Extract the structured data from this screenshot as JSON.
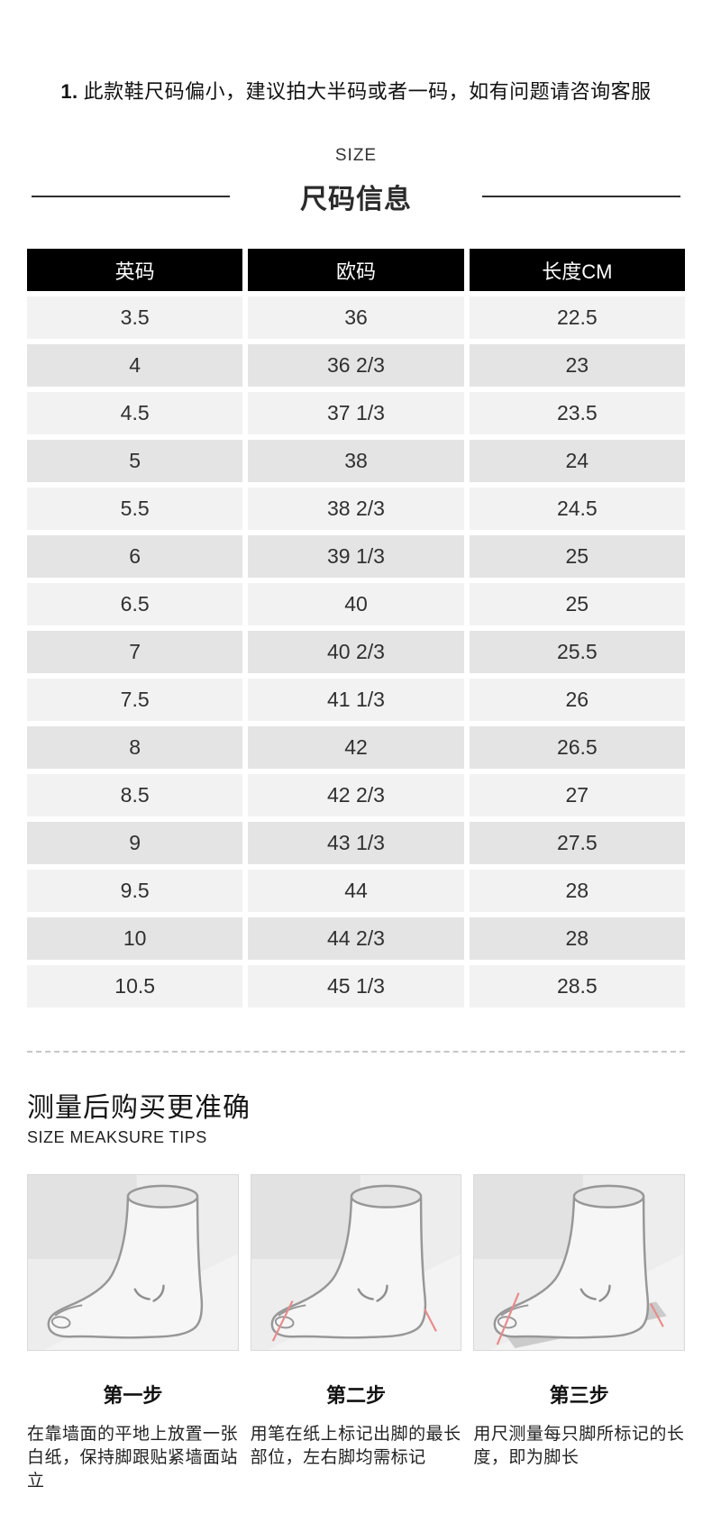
{
  "note": {
    "number": "1.",
    "text": "此款鞋尺码偏小，建议拍大半码或者一码，如有问题请咨询客服"
  },
  "size_section": {
    "eyebrow": "SIZE",
    "title": "尺码信息"
  },
  "size_table": {
    "headers": [
      "英码",
      "欧码",
      "长度CM"
    ],
    "rows": [
      [
        "3.5",
        "36",
        "22.5"
      ],
      [
        "4",
        "36 2/3",
        "23"
      ],
      [
        "4.5",
        "37 1/3",
        "23.5"
      ],
      [
        "5",
        "38",
        "24"
      ],
      [
        "5.5",
        "38 2/3",
        "24.5"
      ],
      [
        "6",
        "39 1/3",
        "25"
      ],
      [
        "6.5",
        "40",
        "25"
      ],
      [
        "7",
        "40 2/3",
        "25.5"
      ],
      [
        "7.5",
        "41 1/3",
        "26"
      ],
      [
        "8",
        "42",
        "26.5"
      ],
      [
        "8.5",
        "42 2/3",
        "27"
      ],
      [
        "9",
        "43 1/3",
        "27.5"
      ],
      [
        "9.5",
        "44",
        "28"
      ],
      [
        "10",
        "44 2/3",
        "28"
      ],
      [
        "10.5",
        "45 1/3",
        "28.5"
      ]
    ],
    "colors": {
      "header_bg": "#000000",
      "header_text": "#ffffff",
      "row_light": "#f2f2f2",
      "row_dark": "#e4e4e4",
      "accent_red": "#e98b8b"
    }
  },
  "measure_section": {
    "title": "测量后购买更准确",
    "subtitle": "SIZE MEAKSURE TIPS",
    "steps": [
      {
        "label": "第一步",
        "description": "在靠墙面的平地上放置一张白纸，保持脚跟贴紧墙面站立",
        "illustration": "foot-standing-against-wall"
      },
      {
        "label": "第二步",
        "description": "用笔在纸上标记出脚的最长部位，左右脚均需标记",
        "illustration": "foot-with-red-marks"
      },
      {
        "label": "第三步",
        "description": "用尺测量每只脚所标记的长度，即为脚长",
        "illustration": "foot-with-ruler"
      }
    ]
  }
}
